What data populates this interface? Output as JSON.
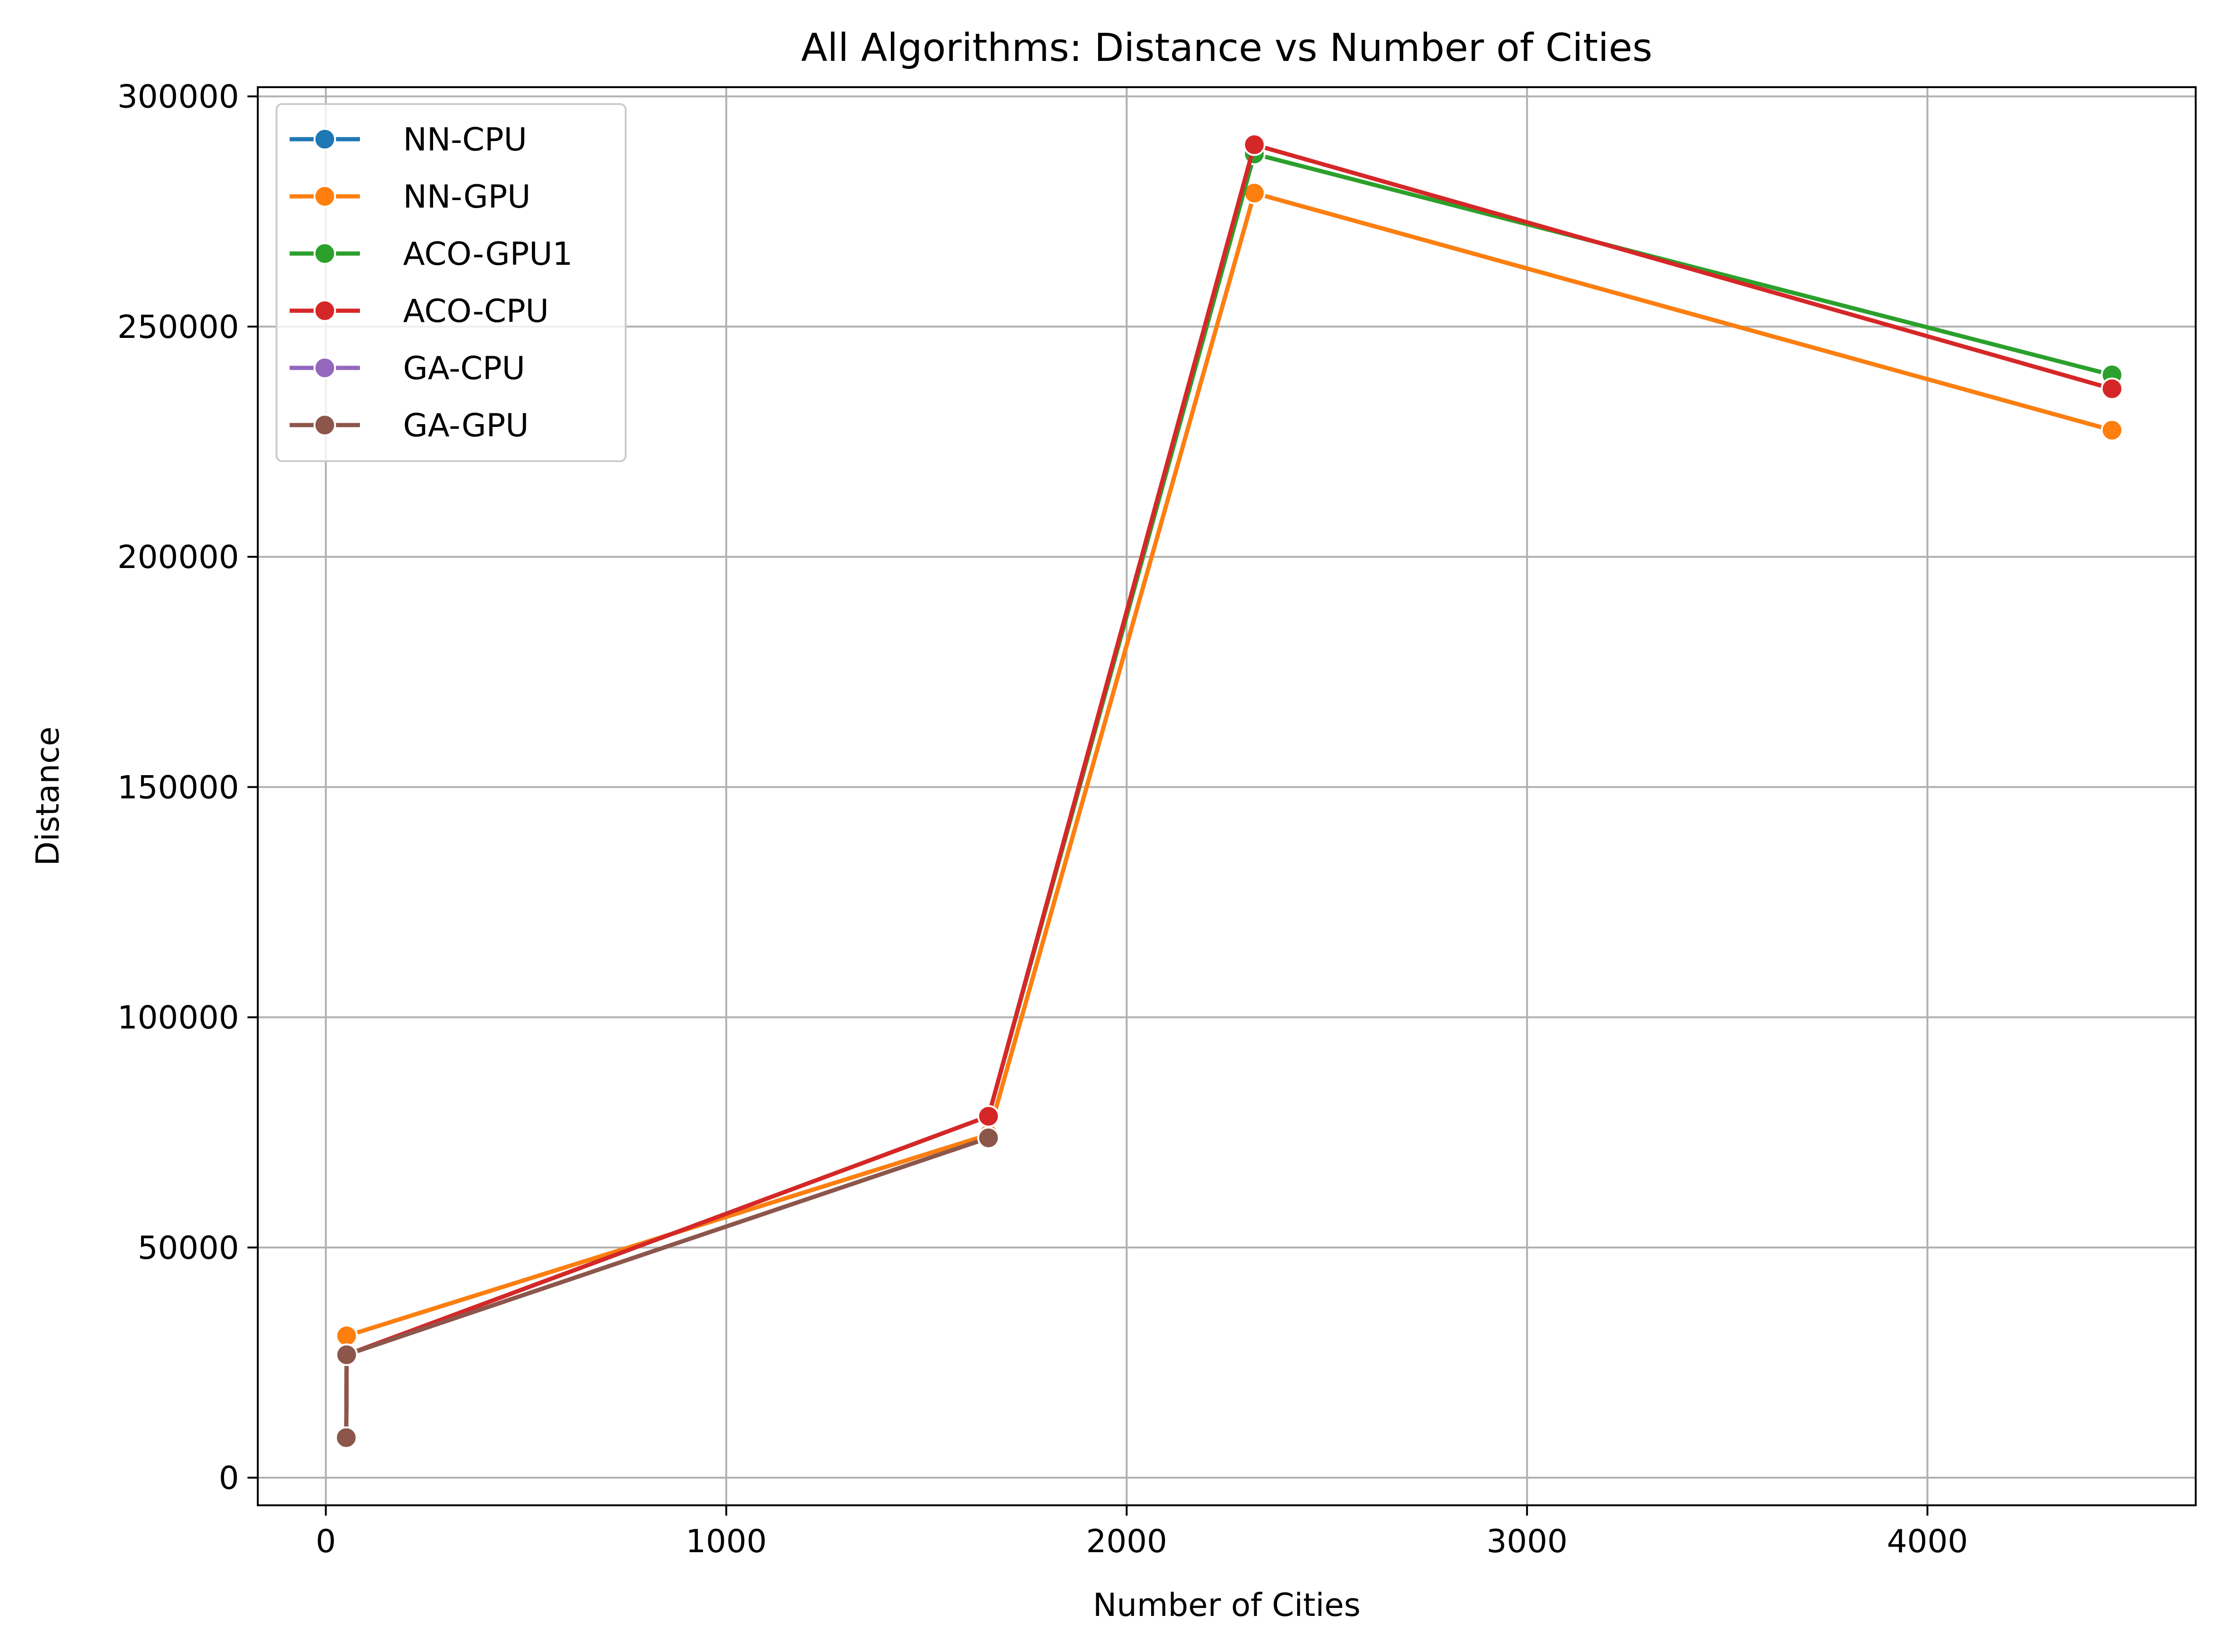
{
  "chart_data": {
    "type": "line",
    "title": "All Algorithms: Distance vs Number of Cities",
    "xlabel": "Number of Cities",
    "ylabel": "Distance",
    "xlim": [
      -170,
      4670
    ],
    "ylim": [
      -6000,
      302000
    ],
    "xticks": [
      0,
      1000,
      2000,
      3000,
      4000
    ],
    "yticks": [
      0,
      50000,
      100000,
      150000,
      200000,
      250000,
      300000
    ],
    "grid": true,
    "legend_position": "top-left",
    "series": [
      {
        "name": "NN-CPU",
        "color": "#1f77b4",
        "x": [
          51,
          52,
          1655,
          2319,
          4461
        ],
        "y": [
          8500,
          30800,
          74500,
          279000,
          227500
        ]
      },
      {
        "name": "NN-GPU",
        "color": "#ff7f0e",
        "x": [
          51,
          52,
          1655,
          2319,
          4461
        ],
        "y": [
          8500,
          30800,
          74500,
          279000,
          227500
        ]
      },
      {
        "name": "ACO-GPU1",
        "color": "#2ca02c",
        "x": [
          51,
          52,
          1655,
          2319,
          4461
        ],
        "y": [
          8700,
          26700,
          78500,
          287500,
          239500
        ]
      },
      {
        "name": "ACO-CPU",
        "color": "#d62728",
        "x": [
          51,
          52,
          1655,
          2319,
          4461
        ],
        "y": [
          8700,
          26700,
          78500,
          289500,
          236500
        ]
      },
      {
        "name": "GA-CPU",
        "color": "#9467bd",
        "x": [
          51,
          52,
          1655
        ],
        "y": [
          8700,
          26700,
          73800
        ]
      },
      {
        "name": "GA-GPU",
        "color": "#8c564b",
        "x": [
          51,
          52,
          1655
        ],
        "y": [
          8700,
          26700,
          73800
        ]
      }
    ]
  }
}
